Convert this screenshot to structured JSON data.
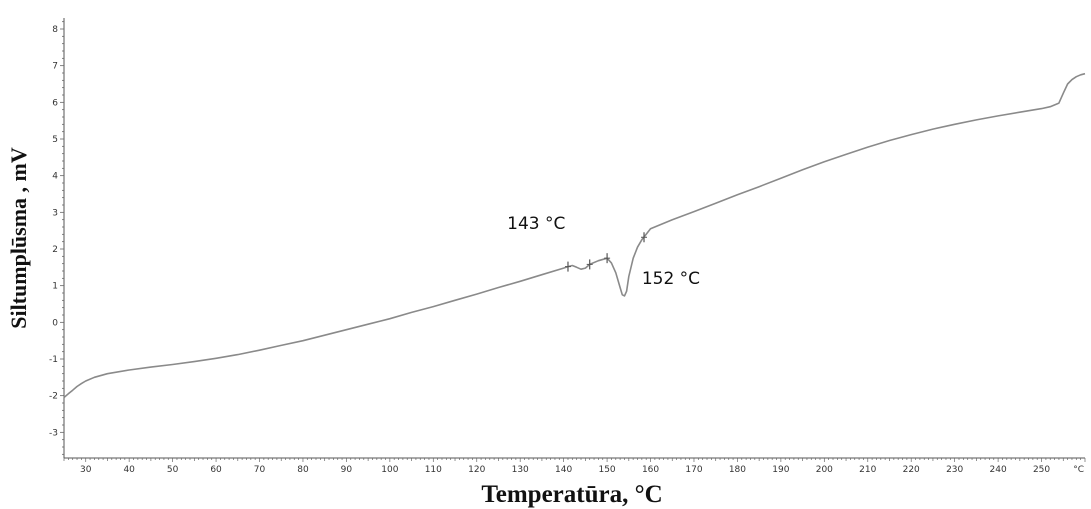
{
  "chart_data": {
    "type": "line",
    "xlabel": "Temperatūra, °C",
    "ylabel": "Siltumplūsma , mV",
    "x_unit_label": "°C",
    "xlim": [
      25,
      260
    ],
    "ylim": [
      -3.7,
      8.3
    ],
    "x_ticks": [
      30,
      40,
      50,
      60,
      70,
      80,
      90,
      100,
      110,
      120,
      130,
      140,
      150,
      160,
      170,
      180,
      190,
      200,
      210,
      220,
      230,
      240,
      250
    ],
    "y_ticks": [
      -3,
      -2,
      -1,
      0,
      1,
      2,
      3,
      4,
      5,
      6,
      7,
      8
    ],
    "grid": false,
    "series": [
      {
        "color": "#8a8a8a",
        "x": [
          25,
          26,
          27,
          28,
          29,
          30,
          32,
          35,
          40,
          45,
          50,
          55,
          60,
          65,
          70,
          75,
          80,
          85,
          90,
          95,
          100,
          105,
          110,
          115,
          120,
          125,
          130,
          135,
          140,
          141,
          142,
          143,
          144,
          145,
          146,
          148,
          150,
          151,
          152,
          153,
          153.5,
          154,
          154.5,
          155,
          156,
          157,
          158,
          159,
          160,
          165,
          170,
          175,
          180,
          185,
          190,
          195,
          200,
          205,
          210,
          215,
          220,
          225,
          230,
          235,
          240,
          245,
          250,
          252,
          254,
          255,
          256,
          257,
          258,
          259,
          260
        ],
        "y": [
          -2.05,
          -1.95,
          -1.85,
          -1.75,
          -1.67,
          -1.6,
          -1.5,
          -1.4,
          -1.3,
          -1.22,
          -1.15,
          -1.07,
          -0.98,
          -0.88,
          -0.76,
          -0.63,
          -0.5,
          -0.35,
          -0.2,
          -0.05,
          0.1,
          0.27,
          0.43,
          0.6,
          0.77,
          0.95,
          1.12,
          1.3,
          1.48,
          1.52,
          1.55,
          1.5,
          1.45,
          1.48,
          1.58,
          1.68,
          1.75,
          1.62,
          1.35,
          0.95,
          0.75,
          0.72,
          0.85,
          1.25,
          1.75,
          2.05,
          2.25,
          2.4,
          2.55,
          2.8,
          3.02,
          3.25,
          3.48,
          3.7,
          3.93,
          4.16,
          4.38,
          4.58,
          4.78,
          4.96,
          5.12,
          5.27,
          5.4,
          5.52,
          5.63,
          5.73,
          5.83,
          5.88,
          5.98,
          6.25,
          6.5,
          6.62,
          6.7,
          6.75,
          6.78
        ]
      }
    ],
    "markers": [
      {
        "x": 141,
        "y": 1.52
      },
      {
        "x": 146,
        "y": 1.58
      },
      {
        "x": 150,
        "y": 1.75
      },
      {
        "x": 158.5,
        "y": 2.32
      }
    ],
    "annotations": [
      {
        "text": "143 °C",
        "x": 127,
        "y": 2.55
      },
      {
        "text": "152 °C",
        "x": 158,
        "y": 1.05
      }
    ]
  }
}
